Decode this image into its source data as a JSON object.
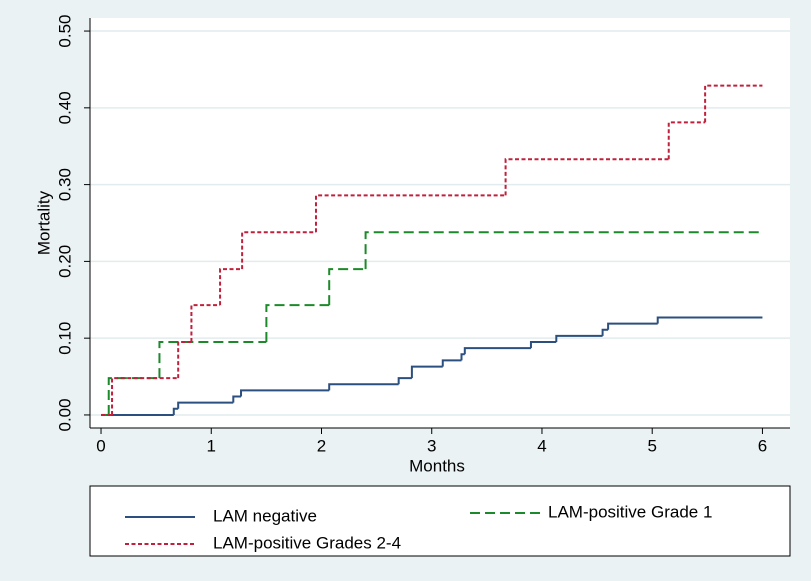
{
  "chart_data": {
    "type": "step",
    "x_label": "Months",
    "y_label": "Mortality",
    "xlim": [
      -0.1,
      6.25
    ],
    "ylim": [
      -0.017,
      0.517
    ],
    "xticks": [
      0,
      1,
      2,
      3,
      4,
      5,
      6
    ],
    "yticks": [
      {
        "value": 0,
        "label": "0.00"
      },
      {
        "value": 0.1,
        "label": "0.10"
      },
      {
        "value": 0.2,
        "label": "0.20"
      },
      {
        "value": 0.3,
        "label": "0.30"
      },
      {
        "value": 0.4,
        "label": "0.40"
      },
      {
        "value": 0.5,
        "label": "0.50"
      }
    ],
    "grid": true,
    "legend": "bottom",
    "series": [
      {
        "name": "LAM negative",
        "color": "#2b4f7e",
        "dash": "solid",
        "x": [
          0,
          0.66,
          0.7,
          1.2,
          1.27,
          2.07,
          2.7,
          2.82,
          3.1,
          3.27,
          3.3,
          3.9,
          4.13,
          4.55,
          4.6,
          5.05,
          6
        ],
        "values": [
          0,
          0.008,
          0.016,
          0.024,
          0.032,
          0.04,
          0.048,
          0.063,
          0.071,
          0.079,
          0.087,
          0.095,
          0.103,
          0.111,
          0.119,
          0.127,
          0.127
        ]
      },
      {
        "name": "LAM-positive Grade 1",
        "color": "#1c8a2a",
        "dash": "dashed",
        "x": [
          0,
          0.07,
          0.53,
          1.5,
          2.07,
          2.4,
          6
        ],
        "values": [
          0,
          0.048,
          0.095,
          0.143,
          0.19,
          0.238,
          0.238
        ]
      },
      {
        "name": "LAM-positive Grades 2-4",
        "color": "#c0203c",
        "dash": "dotted",
        "x": [
          0,
          0.1,
          0.7,
          0.82,
          1.08,
          1.28,
          1.95,
          3.67,
          5.15,
          5.48,
          6
        ],
        "values": [
          0,
          0.048,
          0.095,
          0.143,
          0.19,
          0.238,
          0.286,
          0.333,
          0.381,
          0.429,
          0.429
        ]
      }
    ]
  }
}
